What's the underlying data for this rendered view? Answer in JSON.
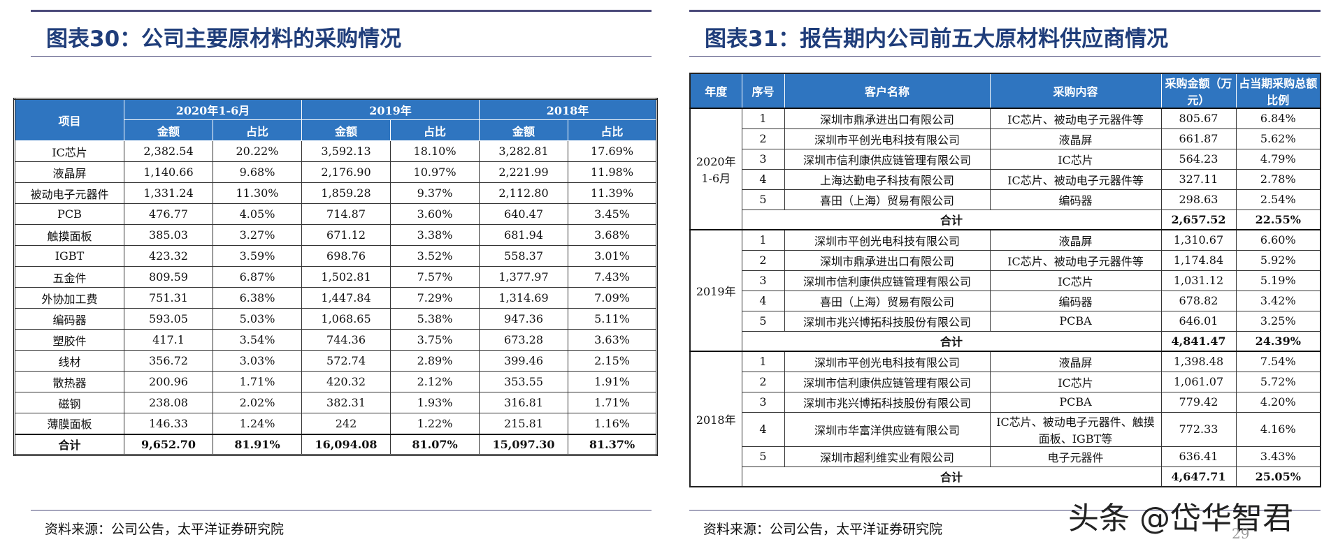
{
  "left": {
    "title": "图表30：公司主要原材料的采购情况",
    "header": {
      "item": "项目",
      "groups": [
        {
          "label": "2020年1-6月",
          "cols": [
            "金额",
            "占比"
          ]
        },
        {
          "label": "2019年",
          "cols": [
            "金额",
            "占比"
          ]
        },
        {
          "label": "2018年",
          "cols": [
            "金额",
            "占比"
          ]
        }
      ]
    },
    "rows": [
      [
        "IC芯片",
        "2,382.54",
        "20.22%",
        "3,592.13",
        "18.10%",
        "3,282.81",
        "17.69%"
      ],
      [
        "液晶屏",
        "1,140.66",
        "9.68%",
        "2,176.90",
        "10.97%",
        "2,221.99",
        "11.98%"
      ],
      [
        "被动电子元器件",
        "1,331.24",
        "11.30%",
        "1,859.28",
        "9.37%",
        "2,112.80",
        "11.39%"
      ],
      [
        "PCB",
        "476.77",
        "4.05%",
        "714.87",
        "3.60%",
        "640.47",
        "3.45%"
      ],
      [
        "触摸面板",
        "385.03",
        "3.27%",
        "671.12",
        "3.38%",
        "681.94",
        "3.68%"
      ],
      [
        "IGBT",
        "423.32",
        "3.59%",
        "698.76",
        "3.52%",
        "558.37",
        "3.01%"
      ],
      [
        "五金件",
        "809.59",
        "6.87%",
        "1,502.81",
        "7.57%",
        "1,377.97",
        "7.43%"
      ],
      [
        "外协加工费",
        "751.31",
        "6.38%",
        "1,447.84",
        "7.29%",
        "1,314.69",
        "7.09%"
      ],
      [
        "编码器",
        "593.05",
        "5.03%",
        "1,068.65",
        "5.38%",
        "947.36",
        "5.11%"
      ],
      [
        "塑胶件",
        "417.1",
        "3.54%",
        "744.36",
        "3.75%",
        "673.28",
        "3.63%"
      ],
      [
        "线材",
        "356.72",
        "3.03%",
        "572.74",
        "2.89%",
        "399.46",
        "2.15%"
      ],
      [
        "散热器",
        "200.96",
        "1.71%",
        "420.32",
        "2.12%",
        "353.55",
        "1.91%"
      ],
      [
        "磁钢",
        "238.08",
        "2.02%",
        "382.31",
        "1.93%",
        "316.81",
        "1.71%"
      ],
      [
        "薄膜面板",
        "146.33",
        "1.24%",
        "242",
        "1.22%",
        "215.81",
        "1.16%"
      ]
    ],
    "total": [
      "合计",
      "9,652.70",
      "81.91%",
      "16,094.08",
      "81.07%",
      "15,097.30",
      "81.37%"
    ],
    "source": "资料来源：公司公告，太平洋证券研究院"
  },
  "right": {
    "title": "图表31：报告期内公司前五大原材料供应商情况",
    "header": [
      "年度",
      "序号",
      "客户名称",
      "采购内容",
      "采购金额（万元）",
      "占当期采购总额比例"
    ],
    "groups": [
      {
        "year": "2020年1-6月",
        "rows": [
          [
            "1",
            "深圳市鼎承进出口有限公司",
            "IC芯片、被动电子元器件等",
            "805.67",
            "6.84%"
          ],
          [
            "2",
            "深圳市平创光电科技有限公司",
            "液晶屏",
            "661.87",
            "5.62%"
          ],
          [
            "3",
            "深圳市信利康供应链管理有限公司",
            "IC芯片",
            "564.23",
            "4.79%"
          ],
          [
            "4",
            "上海达勤电子科技有限公司",
            "IC芯片、被动电子元器件等",
            "327.11",
            "2.78%"
          ],
          [
            "5",
            "喜田（上海）贸易有限公司",
            "编码器",
            "298.63",
            "2.54%"
          ]
        ],
        "total": [
          "合计",
          "2,657.52",
          "22.55%"
        ]
      },
      {
        "year": "2019年",
        "rows": [
          [
            "1",
            "深圳市平创光电科技有限公司",
            "液晶屏",
            "1,310.67",
            "6.60%"
          ],
          [
            "2",
            "深圳市鼎承进出口有限公司",
            "IC芯片、被动电子元器件等",
            "1,174.84",
            "5.92%"
          ],
          [
            "3",
            "深圳市信利康供应链管理有限公司",
            "IC芯片",
            "1,031.12",
            "5.19%"
          ],
          [
            "4",
            "喜田（上海）贸易有限公司",
            "编码器",
            "678.82",
            "3.42%"
          ],
          [
            "5",
            "深圳市兆兴博拓科技股份有限公司",
            "PCBA",
            "646.01",
            "3.25%"
          ]
        ],
        "total": [
          "合计",
          "4,841.47",
          "24.39%"
        ]
      },
      {
        "year": "2018年",
        "rows": [
          [
            "1",
            "深圳市平创光电科技有限公司",
            "液晶屏",
            "1,398.48",
            "7.54%"
          ],
          [
            "2",
            "深圳市信利康供应链管理有限公司",
            "IC芯片",
            "1,061.07",
            "5.72%"
          ],
          [
            "3",
            "深圳市兆兴博拓科技股份有限公司",
            "PCBA",
            "779.42",
            "4.20%"
          ],
          [
            "4",
            "深圳市华富洋供应链有限公司",
            "IC芯片、被动电子元器件、触摸面板、IGBT等",
            "772.33",
            "4.16%"
          ],
          [
            "5",
            "深圳市超利维实业有限公司",
            "电子元器件",
            "636.41",
            "3.43%"
          ]
        ],
        "total": [
          "合计",
          "4,647.71",
          "25.05%"
        ]
      }
    ],
    "source": "资料来源：公司公告，太平洋证券研究院"
  },
  "watermark": "头条 @岱华智君",
  "page_number": "29"
}
